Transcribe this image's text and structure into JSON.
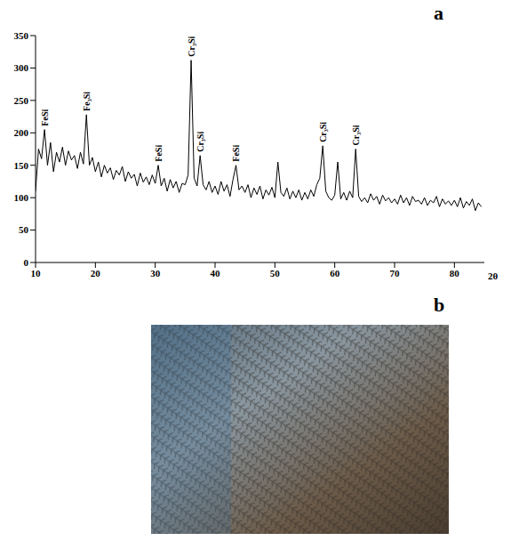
{
  "chart_data": {
    "type": "line",
    "color": "#000000",
    "grid": false,
    "xlabel": "2θ",
    "xlim": [
      10,
      85
    ],
    "xticks": [
      10,
      20,
      30,
      40,
      50,
      60,
      70,
      80
    ],
    "ylim": [
      0,
      350
    ],
    "yticks": [
      0,
      50,
      100,
      150,
      200,
      250,
      300,
      350
    ],
    "x": [
      10,
      10.5,
      11,
      11.5,
      12,
      12.5,
      13,
      13.5,
      14,
      14.5,
      15,
      15.5,
      16,
      16.5,
      17,
      17.5,
      18,
      18.5,
      19,
      19.5,
      20,
      20.5,
      21,
      21.5,
      22,
      22.5,
      23,
      23.5,
      24,
      24.5,
      25,
      25.5,
      26,
      26.5,
      27,
      27.5,
      28,
      28.5,
      29,
      29.5,
      30,
      30.5,
      31,
      31.5,
      32,
      32.5,
      33,
      33.5,
      34,
      34.5,
      35,
      35.5,
      36,
      36.5,
      37,
      37.5,
      38,
      38.5,
      39,
      39.5,
      40,
      40.5,
      41,
      41.5,
      42,
      42.5,
      43,
      43.5,
      44,
      44.5,
      45,
      45.5,
      46,
      46.5,
      47,
      47.5,
      48,
      48.5,
      49,
      49.5,
      50,
      50.5,
      51,
      51.5,
      52,
      52.5,
      53,
      53.5,
      54,
      54.5,
      55,
      55.5,
      56,
      56.5,
      57,
      57.5,
      58,
      58.5,
      59,
      59.5,
      60,
      60.5,
      61,
      61.5,
      62,
      62.5,
      63,
      63.5,
      64,
      64.5,
      65,
      65.5,
      66,
      66.5,
      67,
      67.5,
      68,
      68.5,
      69,
      69.5,
      70,
      70.5,
      71,
      71.5,
      72,
      72.5,
      73,
      73.5,
      74,
      74.5,
      75,
      75.5,
      76,
      76.5,
      77,
      77.5,
      78,
      78.5,
      79,
      79.5,
      80,
      80.5,
      81,
      81.5,
      82,
      82.5,
      83,
      83.5,
      84,
      84.5
    ],
    "values": [
      110,
      175,
      160,
      205,
      150,
      185,
      140,
      170,
      155,
      178,
      150,
      172,
      158,
      165,
      145,
      170,
      152,
      228,
      150,
      162,
      140,
      155,
      132,
      150,
      138,
      146,
      128,
      142,
      135,
      148,
      125,
      140,
      130,
      136,
      118,
      138,
      124,
      132,
      120,
      135,
      122,
      150,
      118,
      130,
      110,
      128,
      115,
      125,
      108,
      122,
      120,
      135,
      312,
      130,
      118,
      165,
      120,
      112,
      125,
      108,
      118,
      105,
      125,
      110,
      120,
      102,
      128,
      150,
      112,
      118,
      108,
      120,
      100,
      115,
      105,
      118,
      98,
      112,
      104,
      116,
      100,
      155,
      108,
      102,
      115,
      98,
      110,
      100,
      112,
      96,
      108,
      98,
      112,
      102,
      120,
      130,
      180,
      110,
      100,
      96,
      104,
      155,
      98,
      108,
      96,
      110,
      100,
      175,
      102,
      94,
      100,
      92,
      106,
      96,
      102,
      90,
      104,
      95,
      100,
      92,
      98,
      90,
      104,
      92,
      100,
      88,
      102,
      94,
      96,
      90,
      100,
      88,
      96,
      92,
      102,
      86,
      98,
      90,
      95,
      88,
      96,
      86,
      100,
      84,
      94,
      88,
      98,
      80,
      92,
      86
    ],
    "annotations": [
      {
        "x": 11.5,
        "y": 205,
        "text": "FeSi"
      },
      {
        "x": 18.5,
        "y": 228,
        "text": "Fe₃Si"
      },
      {
        "x": 30.5,
        "y": 150,
        "text": "FeSi"
      },
      {
        "x": 36,
        "y": 312,
        "text": "Cr₃Si"
      },
      {
        "x": 37.5,
        "y": 165,
        "text": "Cr₃Si"
      },
      {
        "x": 43.5,
        "y": 150,
        "text": "FeSi"
      },
      {
        "x": 58,
        "y": 180,
        "text": "Cr₃Si"
      },
      {
        "x": 63.5,
        "y": 175,
        "text": "Cr₃Si"
      }
    ]
  },
  "panel_labels": [
    "a",
    "b"
  ]
}
